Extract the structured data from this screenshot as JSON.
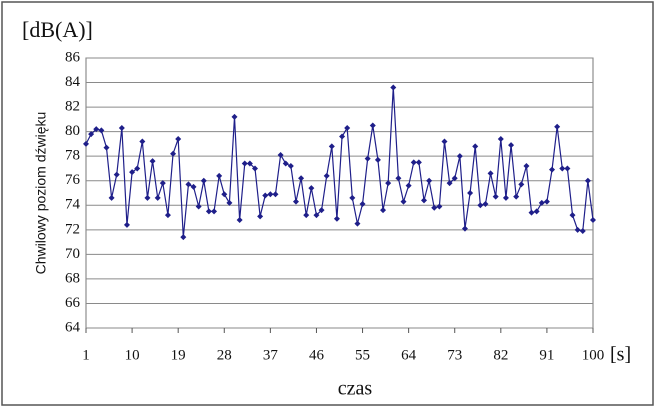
{
  "chart_data": {
    "type": "line",
    "y_unit": "[dB(A)]",
    "y_label": "Chwilowy poziom dźwięku",
    "x_label": "czas",
    "x_unit": "[s]",
    "x": [
      1,
      2,
      3,
      4,
      5,
      6,
      7,
      8,
      9,
      10,
      11,
      12,
      13,
      14,
      15,
      16,
      17,
      18,
      19,
      20,
      21,
      22,
      23,
      24,
      25,
      26,
      27,
      28,
      29,
      30,
      31,
      32,
      33,
      34,
      35,
      36,
      37,
      38,
      39,
      40,
      41,
      42,
      43,
      44,
      45,
      46,
      47,
      48,
      49,
      50,
      51,
      52,
      53,
      54,
      55,
      56,
      57,
      58,
      59,
      60,
      61,
      62,
      63,
      64,
      65,
      66,
      67,
      68,
      69,
      70,
      71,
      72,
      73,
      74,
      75,
      76,
      77,
      78,
      79,
      80,
      81,
      82,
      83,
      84,
      85,
      86,
      87,
      88,
      89,
      90,
      91,
      92,
      93,
      94,
      95,
      96,
      97,
      98,
      99,
      100
    ],
    "series": [
      {
        "name": "Chwilowy poziom dźwięku",
        "color": "#1f1f8a",
        "values": [
          79.0,
          79.8,
          80.2,
          80.1,
          78.7,
          74.6,
          76.5,
          80.3,
          72.4,
          76.7,
          77.0,
          79.2,
          74.6,
          77.6,
          74.6,
          75.8,
          73.2,
          78.2,
          79.4,
          71.4,
          75.7,
          75.5,
          73.9,
          76.0,
          73.5,
          73.5,
          76.4,
          74.9,
          74.2,
          81.2,
          72.8,
          77.4,
          77.4,
          77.0,
          73.1,
          74.8,
          74.9,
          74.9,
          78.1,
          77.4,
          77.2,
          74.3,
          76.2,
          73.2,
          75.4,
          73.2,
          73.6,
          76.4,
          78.8,
          72.9,
          79.6,
          80.3,
          74.6,
          72.5,
          74.1,
          77.8,
          80.5,
          77.7,
          73.6,
          75.8,
          83.6,
          76.2,
          74.3,
          75.6,
          77.5,
          77.5,
          74.4,
          76.0,
          73.8,
          73.9,
          79.2,
          75.8,
          76.2,
          78.0,
          72.1,
          75.0,
          78.8,
          74.0,
          74.1,
          76.6,
          74.7,
          79.4,
          74.6,
          78.9,
          74.7,
          75.7,
          77.2,
          73.4,
          73.5,
          74.2,
          74.3,
          76.9,
          80.4,
          77.0,
          77.0,
          73.2,
          72.0,
          71.9,
          76.0,
          72.8
        ]
      }
    ],
    "xlim": [
      1,
      100
    ],
    "xticks": [
      1,
      10,
      19,
      28,
      37,
      46,
      55,
      64,
      73,
      82,
      91,
      100
    ],
    "ylim": [
      64,
      86
    ],
    "yticks": [
      64,
      66,
      68,
      70,
      72,
      74,
      76,
      78,
      80,
      82,
      84,
      86
    ],
    "grid": true
  }
}
